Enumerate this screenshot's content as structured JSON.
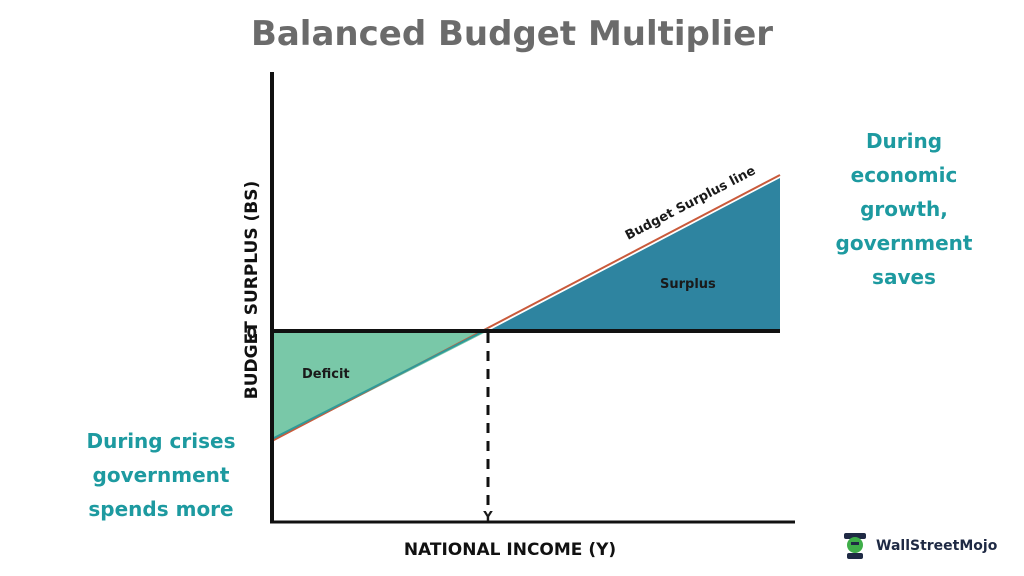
{
  "title": "Balanced Budget Multiplier",
  "axes": {
    "y_label": "BUDGET SURPLUS (BS)",
    "x_label": "NATIONAL INCOME (Y)",
    "zero_label": "0",
    "y_tick": "Y"
  },
  "regions": {
    "deficit": "Deficit",
    "surplus": "Surplus",
    "line_label": "Budget Surplus line"
  },
  "annotations": {
    "left": "During crises government spends more",
    "right": "During economic growth, government saves"
  },
  "logo": {
    "text": "WallStreetMojo"
  },
  "colors": {
    "title": "#6b6b6b",
    "annotation": "#1d9aa0",
    "deficit": "#79c8a8",
    "surplus": "#2e84a0",
    "line": "#c95a3b",
    "axis": "#111111"
  }
}
